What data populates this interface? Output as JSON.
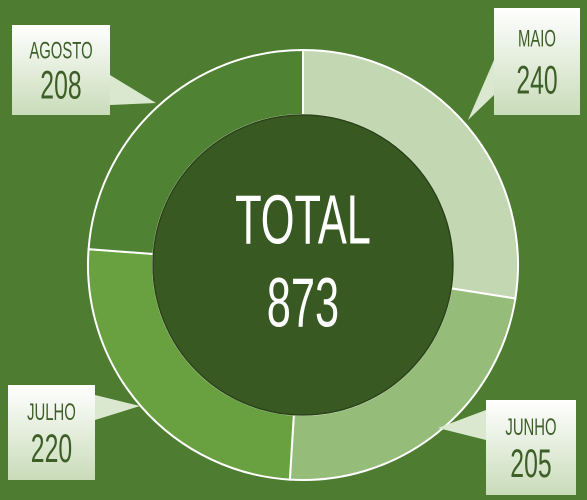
{
  "chart_data": {
    "type": "donut",
    "categories": [
      "MAIO",
      "JUNHO",
      "JULHO",
      "AGOSTO"
    ],
    "values": [
      240,
      205,
      220,
      208
    ],
    "colors": [
      "#c3d8b2",
      "#95bd79",
      "#69a141",
      "#4f8233"
    ],
    "center_label": "TOTAL",
    "total": 873
  }
}
